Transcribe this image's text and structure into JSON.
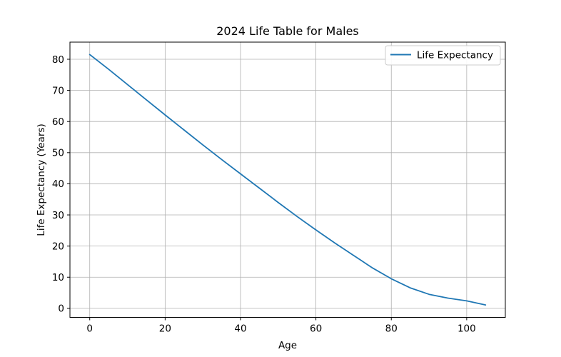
{
  "figure": {
    "background_color": "#ffffff"
  },
  "chart_data": {
    "type": "line",
    "title": "2024 Life Table for Males",
    "xlabel": "Age",
    "ylabel": "Life Expectancy (Years)",
    "grid": true,
    "legend": {
      "position": "upper right",
      "entries": [
        "Life Expectancy"
      ]
    },
    "x": [
      0,
      5,
      10,
      15,
      20,
      25,
      30,
      35,
      40,
      45,
      50,
      55,
      60,
      65,
      70,
      75,
      80,
      85,
      90,
      95,
      100,
      105
    ],
    "series": [
      {
        "name": "Life Expectancy",
        "values": [
          81.5,
          76.8,
          71.9,
          67.0,
          62.1,
          57.3,
          52.5,
          47.8,
          43.2,
          38.6,
          34.0,
          29.5,
          25.2,
          21.0,
          17.0,
          13.0,
          9.5,
          6.6,
          4.5,
          3.3,
          2.4,
          1.1
        ]
      }
    ],
    "xticks": [
      0,
      20,
      40,
      60,
      80,
      100
    ],
    "yticks": [
      0,
      10,
      20,
      30,
      40,
      50,
      60,
      70,
      80
    ],
    "xlim": [
      -5.25,
      110.25
    ],
    "ylim": [
      -2.9,
      85.5
    ],
    "colors": {
      "line": "#1f77b4",
      "grid": "#b0b0b0",
      "frame": "#000000",
      "legend_border": "#cccccc",
      "background": "#ffffff"
    }
  }
}
